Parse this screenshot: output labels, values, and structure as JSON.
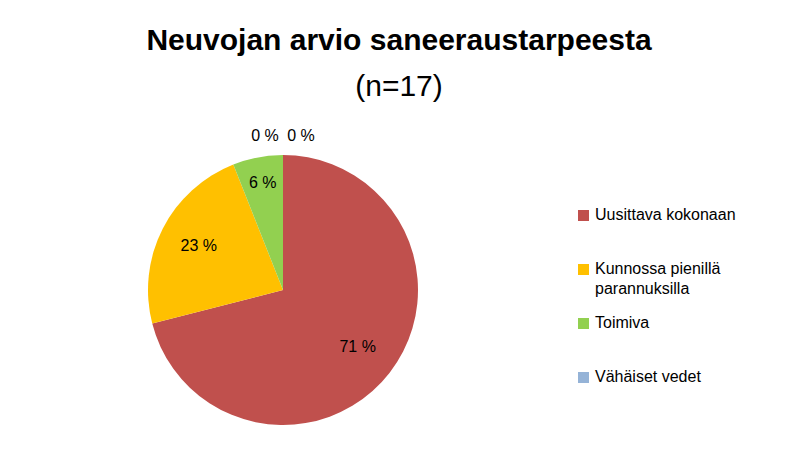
{
  "chart_data": {
    "type": "pie",
    "title": "Neuvojan arvio saneeraustarpeesta",
    "subtitle": "(n=17)",
    "categories": [
      "Uusittava kokonaan",
      "Kunnossa pienillä parannuksilla",
      "Toimiva",
      "Vähäiset vedet",
      null
    ],
    "values": [
      71,
      23,
      6,
      0,
      0
    ],
    "value_labels": [
      "71 %",
      "23 %",
      "6 %",
      "0 %",
      "0 %"
    ],
    "colors": [
      "#c0504d",
      "#ffc000",
      "#92d050",
      "#95b3d7",
      "#8064a2"
    ],
    "data_labels": true,
    "legend": "right"
  }
}
